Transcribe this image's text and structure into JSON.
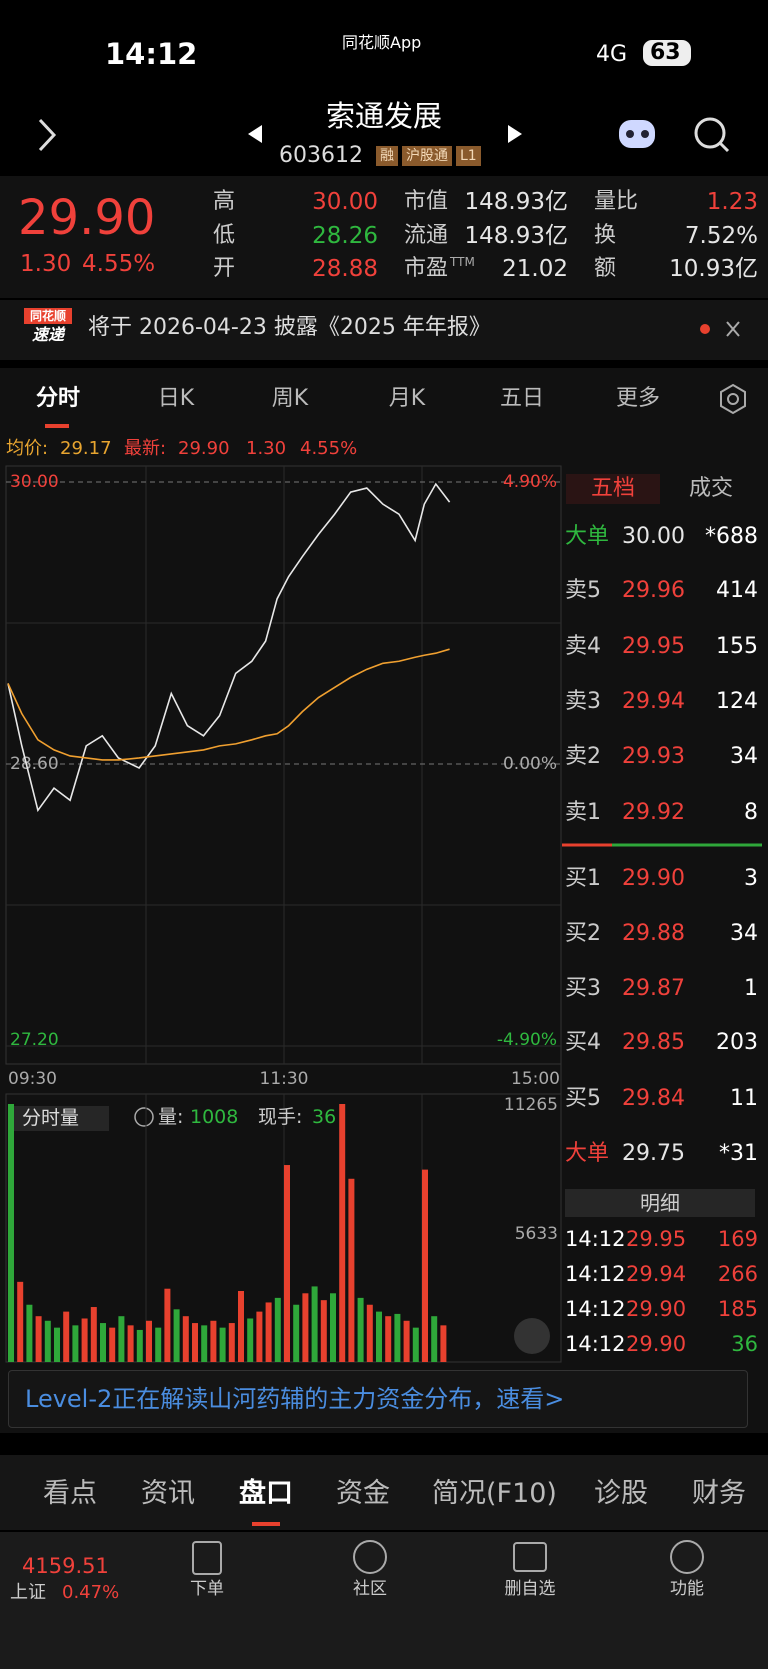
{
  "status": {
    "time": "14:12",
    "app": "同花顺App",
    "network": "4G",
    "battery": "63"
  },
  "header": {
    "title": "索通发展",
    "code": "603612",
    "tags": [
      "融",
      "沪股通",
      "L1"
    ]
  },
  "quote": {
    "price": "29.90",
    "change": "1.30",
    "pct": "4.55%",
    "stats": [
      {
        "label": "高",
        "value": "30.00"
      },
      {
        "label": "低",
        "value": "28.26"
      },
      {
        "label": "开",
        "value": "28.88"
      },
      {
        "label": "市值",
        "value": "148.93亿"
      },
      {
        "label": "流通",
        "value": "148.93亿"
      },
      {
        "label": "市盈",
        "sup": "TTM",
        "value": "21.02"
      },
      {
        "label": "量比",
        "value": "1.23"
      },
      {
        "label": "换",
        "value": "7.52%"
      },
      {
        "label": "额",
        "value": "10.93亿"
      }
    ]
  },
  "notice": {
    "badge_top": "同花顺",
    "badge_bottom": "速递",
    "text": "将于 2026-04-23 披露《2025 年年报》"
  },
  "tabs": [
    "分时",
    "日K",
    "周K",
    "月K",
    "五日",
    "更多"
  ],
  "info": {
    "avg_label": "均价:",
    "avg": "29.17",
    "latest_label": "最新:",
    "latest": "29.90",
    "change": "1.30",
    "pct": "4.55%"
  },
  "chart_data": [
    {
      "type": "line",
      "x": [
        0,
        6,
        13,
        20,
        27,
        34,
        41,
        48,
        57,
        64,
        71,
        78,
        85,
        92,
        99,
        106,
        112,
        117,
        122,
        128,
        135,
        142,
        149,
        156,
        163,
        170,
        177,
        181,
        186,
        192
      ],
      "series": [
        {
          "color": "#e8e8e8",
          "values": [
            29.0,
            28.69,
            28.37,
            28.48,
            28.42,
            28.69,
            28.74,
            28.63,
            28.58,
            28.69,
            28.95,
            28.79,
            28.74,
            28.84,
            29.05,
            29.11,
            29.21,
            29.42,
            29.53,
            29.63,
            29.74,
            29.84,
            29.95,
            29.97,
            29.89,
            29.84,
            29.71,
            29.89,
            29.99,
            29.9
          ]
        },
        {
          "color": "#f0a030",
          "values": [
            29.0,
            28.85,
            28.72,
            28.67,
            28.64,
            28.63,
            28.62,
            28.62,
            28.63,
            28.64,
            28.65,
            28.66,
            28.67,
            28.69,
            28.7,
            28.72,
            28.74,
            28.75,
            28.79,
            28.86,
            28.93,
            28.98,
            29.03,
            29.07,
            29.1,
            29.11,
            29.13,
            29.14,
            29.15,
            29.17
          ]
        }
      ],
      "xlim": [
        0,
        240
      ],
      "xticks": [
        {
          "value": 0,
          "label": "09:30"
        },
        {
          "value": 120,
          "label": "11:30"
        },
        {
          "value": 240,
          "label": "15:00"
        }
      ],
      "ylim": [
        27.2,
        30.0
      ],
      "yticks": [
        {
          "value": 30.0,
          "label": "30.00"
        },
        {
          "value": 28.6,
          "label": "28.60"
        },
        {
          "value": 27.2,
          "label": "27.20"
        }
      ],
      "y2lim": [
        -4.9,
        4.9
      ],
      "y2ticks": [
        {
          "value": 4.9,
          "label": "4.90%"
        },
        {
          "value": 0,
          "label": "0.00%"
        },
        {
          "value": -4.9,
          "label": "-4.90%"
        }
      ]
    },
    {
      "type": "bar",
      "x": [
        0,
        4,
        8,
        12,
        16,
        20,
        24,
        28,
        32,
        36,
        40,
        44,
        48,
        52,
        56,
        60,
        64,
        68,
        72,
        76,
        80,
        84,
        88,
        92,
        96,
        100,
        104,
        108,
        112,
        116,
        120,
        124,
        128,
        132,
        136,
        140,
        144,
        148,
        152,
        156,
        160,
        164,
        168,
        172,
        176,
        180,
        184,
        188
      ],
      "values": [
        11265,
        3500,
        2500,
        2000,
        1800,
        1500,
        2200,
        1600,
        1900,
        2400,
        1700,
        1500,
        2000,
        1600,
        1400,
        1800,
        1500,
        3200,
        2300,
        2000,
        1700,
        1600,
        1800,
        1500,
        1700,
        3100,
        1900,
        2200,
        2600,
        2800,
        8600,
        2500,
        3000,
        3300,
        2700,
        3000,
        11265,
        8000,
        2800,
        2500,
        2200,
        2000,
        2100,
        1800,
        1500,
        8400,
        2000,
        1600
      ],
      "colors": [
        "#2fa83a",
        "#e8412e",
        "#2fa83a",
        "#e8412e",
        "#2fa83a",
        "#2fa83a",
        "#e8412e",
        "#2fa83a",
        "#e8412e",
        "#e8412e",
        "#2fa83a",
        "#e8412e",
        "#2fa83a",
        "#e8412e",
        "#2fa83a",
        "#e8412e",
        "#2fa83a",
        "#e8412e",
        "#2fa83a",
        "#e8412e",
        "#e8412e",
        "#2fa83a",
        "#e8412e",
        "#2fa83a",
        "#e8412e",
        "#e8412e",
        "#2fa83a",
        "#e8412e",
        "#e8412e",
        "#2fa83a",
        "#e8412e",
        "#2fa83a",
        "#e8412e",
        "#2fa83a",
        "#e8412e",
        "#2fa83a",
        "#e8412e",
        "#e8412e",
        "#2fa83a",
        "#e8412e",
        "#2fa83a",
        "#e8412e",
        "#2fa83a",
        "#e8412e",
        "#2fa83a",
        "#e8412e",
        "#2fa83a",
        "#e8412e"
      ],
      "xlim": [
        0,
        240
      ],
      "ylim": [
        0,
        11265
      ],
      "yticks": [
        11265,
        5633
      ]
    }
  ],
  "volume_info": {
    "selector": "分时量",
    "vol_label": "量:",
    "vol": "1008",
    "hand_label": "现手:",
    "hand": "36"
  },
  "orderbook": {
    "tabs": [
      "五档",
      "成交"
    ],
    "big_sell": {
      "label": "大单",
      "price": "30.00",
      "vol": "*688"
    },
    "asks": [
      {
        "label": "卖5",
        "price": "29.96",
        "vol": "414"
      },
      {
        "label": "卖4",
        "price": "29.95",
        "vol": "155"
      },
      {
        "label": "卖3",
        "price": "29.94",
        "vol": "124"
      },
      {
        "label": "卖2",
        "price": "29.93",
        "vol": "34"
      },
      {
        "label": "卖1",
        "price": "29.92",
        "vol": "8"
      }
    ],
    "bids": [
      {
        "label": "买1",
        "price": "29.90",
        "vol": "3"
      },
      {
        "label": "买2",
        "price": "29.88",
        "vol": "34"
      },
      {
        "label": "买3",
        "price": "29.87",
        "vol": "1"
      },
      {
        "label": "买4",
        "price": "29.85",
        "vol": "203"
      },
      {
        "label": "买5",
        "price": "29.84",
        "vol": "11"
      }
    ],
    "big_buy": {
      "label": "大单",
      "price": "29.75",
      "vol": "*31"
    },
    "detail_title": "明细",
    "trades": [
      {
        "time": "14:12",
        "price": "29.95",
        "vol": "169"
      },
      {
        "time": "14:12",
        "price": "29.94",
        "vol": "266"
      },
      {
        "time": "14:12",
        "price": "29.90",
        "vol": "185"
      },
      {
        "time": "14:12",
        "price": "29.90",
        "vol": "36"
      }
    ]
  },
  "banner": {
    "text": "Level-2正在解读山河药辅的主力资金分布，速看>"
  },
  "bottom_tabs": [
    "看点",
    "资讯",
    "盘口",
    "资金",
    "简况(F10)",
    "诊股",
    "财务"
  ],
  "footer": {
    "index_value": "4159.51",
    "index_name": "上证",
    "index_pct": "0.47%",
    "buttons": [
      "下单",
      "社区",
      "删自选",
      "功能"
    ]
  }
}
